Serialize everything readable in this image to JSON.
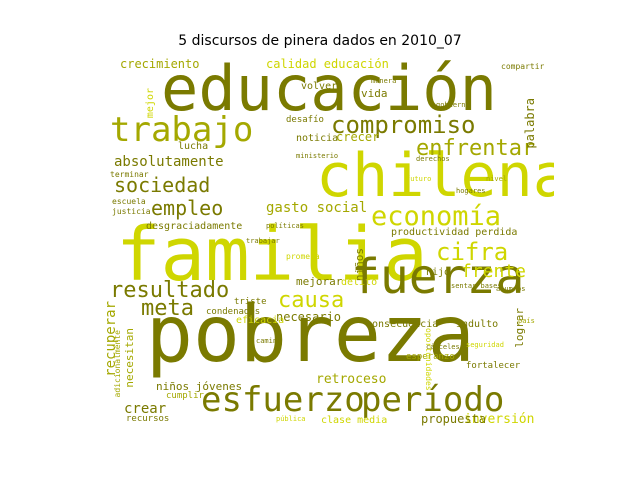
{
  "title": "5 discursos de pinera dados en 2010_07",
  "colors": {
    "dark": "#7a7a00",
    "light": "#cfd600",
    "mid": "#a4a800"
  },
  "words": [
    {
      "text": "pobreza",
      "color": "dark"
    },
    {
      "text": "familia",
      "color": "light"
    },
    {
      "text": "chilena",
      "color": "light"
    },
    {
      "text": "educación",
      "color": "dark"
    },
    {
      "text": "fuerza",
      "color": "dark"
    },
    {
      "text": "esfuerzo",
      "color": "dark"
    },
    {
      "text": "período",
      "color": "dark"
    },
    {
      "text": "trabajo",
      "color": "mid"
    },
    {
      "text": "compromiso",
      "color": "dark"
    },
    {
      "text": "economía",
      "color": "light"
    },
    {
      "text": "enfrentar",
      "color": "mid"
    },
    {
      "text": "resultado",
      "color": "dark"
    },
    {
      "text": "sociedad",
      "color": "dark"
    },
    {
      "text": "cifra",
      "color": "light"
    },
    {
      "text": "meta",
      "color": "dark"
    },
    {
      "text": "causa",
      "color": "light"
    },
    {
      "text": "empleo",
      "color": "dark"
    },
    {
      "text": "frente",
      "color": "light"
    },
    {
      "text": "absolutamente",
      "color": "dark"
    },
    {
      "text": "gasto social",
      "color": "mid"
    },
    {
      "text": "crecimiento",
      "color": "mid"
    },
    {
      "text": "calidad educación",
      "color": "light"
    },
    {
      "text": "recuperar",
      "color": "mid"
    },
    {
      "text": "inversión",
      "color": "light"
    },
    {
      "text": "propuesta",
      "color": "dark"
    },
    {
      "text": "retroceso",
      "color": "mid"
    },
    {
      "text": "necesario",
      "color": "dark"
    },
    {
      "text": "mejorar",
      "color": "dark"
    },
    {
      "text": "crear",
      "color": "dark"
    },
    {
      "text": "niños jóvenes",
      "color": "dark"
    },
    {
      "text": "desgraciadamente",
      "color": "dark"
    },
    {
      "text": "productividad perdida",
      "color": "dark"
    },
    {
      "text": "lucha",
      "color": "dark"
    },
    {
      "text": "crecer",
      "color": "mid"
    },
    {
      "text": "noticia",
      "color": "dark"
    },
    {
      "text": "desafío",
      "color": "dark"
    },
    {
      "text": "volver",
      "color": "dark"
    },
    {
      "text": "vida",
      "color": "dark"
    },
    {
      "text": "palabra",
      "color": "dark"
    },
    {
      "text": "niños",
      "color": "dark"
    },
    {
      "text": "delito",
      "color": "light"
    },
    {
      "text": "hijo",
      "color": "dark"
    },
    {
      "text": "eficacia",
      "color": "light"
    },
    {
      "text": "consecuencia",
      "color": "dark"
    },
    {
      "text": "indulto",
      "color": "dark"
    },
    {
      "text": "lograr",
      "color": "dark"
    },
    {
      "text": "fortalecer",
      "color": "dark"
    },
    {
      "text": "esperanzo",
      "color": "mid"
    },
    {
      "text": "clase media",
      "color": "light"
    },
    {
      "text": "cumplir",
      "color": "mid"
    },
    {
      "text": "triste",
      "color": "dark"
    },
    {
      "text": "condenados",
      "color": "dark"
    },
    {
      "text": "necesitan",
      "color": "mid"
    },
    {
      "text": "terminar",
      "color": "dark"
    },
    {
      "text": "escuela",
      "color": "dark"
    },
    {
      "text": "justicia",
      "color": "dark"
    },
    {
      "text": "promesa",
      "color": "light"
    },
    {
      "text": "oportunidades",
      "color": "light"
    },
    {
      "text": "adicionalmente",
      "color": "mid"
    },
    {
      "text": "compartir",
      "color": "dark"
    },
    {
      "text": "recursos",
      "color": "dark"
    },
    {
      "text": "mejor",
      "color": "light"
    },
    {
      "text": "sentar bases",
      "color": "dark"
    },
    {
      "text": "manera",
      "color": "dark"
    },
    {
      "text": "gobierno",
      "color": "dark"
    },
    {
      "text": "seguridad",
      "color": "light"
    },
    {
      "text": "camino",
      "color": "dark"
    },
    {
      "text": "país",
      "color": "mid"
    },
    {
      "text": "trabajar",
      "color": "dark"
    },
    {
      "text": "futuro",
      "color": "light"
    },
    {
      "text": "ministerio",
      "color": "dark"
    },
    {
      "text": "derechos",
      "color": "dark"
    },
    {
      "text": "políticas",
      "color": "dark"
    },
    {
      "text": "alumnos",
      "color": "dark"
    },
    {
      "text": "cárceles",
      "color": "dark"
    },
    {
      "text": "pública",
      "color": "light"
    },
    {
      "text": "hogares",
      "color": "dark"
    },
    {
      "text": "nivel",
      "color": "mid"
    }
  ]
}
